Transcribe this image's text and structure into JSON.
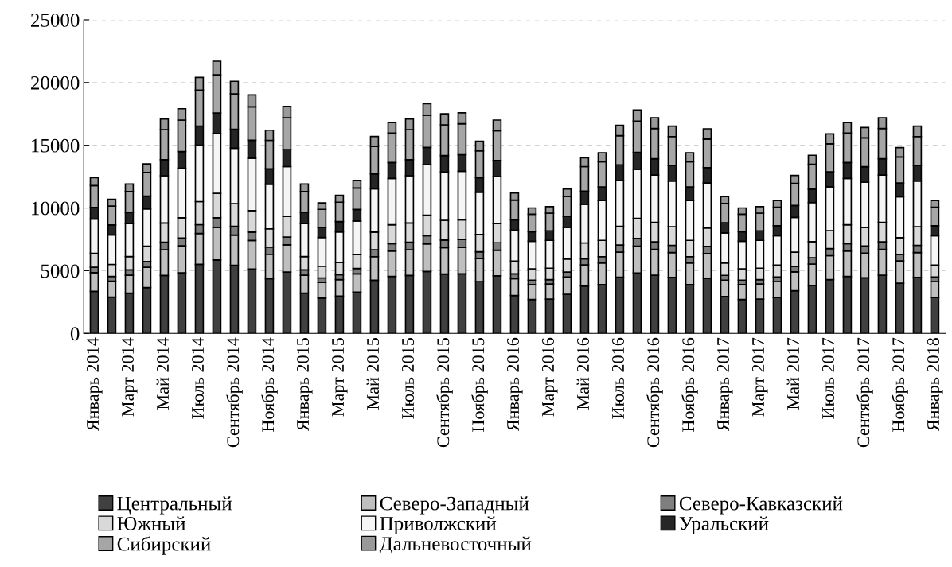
{
  "chart_data": {
    "type": "bar",
    "stacked": true,
    "categories": [
      "Январь 2014",
      null,
      "Март 2014",
      null,
      "Май 2014",
      null,
      "Июль 2014",
      null,
      "Сентябрь 2014",
      null,
      "Ноябрь 2014",
      null,
      "Январь 2015",
      null,
      "Март 2015",
      null,
      "Май 2015",
      null,
      "Июль 2015",
      null,
      "Сентябрь 2015",
      null,
      "Ноябрь 2015",
      null,
      "Январь 2016",
      null,
      "Март 2016",
      null,
      "Май 2016",
      null,
      "Июль 2016",
      null,
      "Сентябрь 2016",
      null,
      "Ноябрь 2016",
      null,
      "Январь 2017",
      null,
      "Март 2017",
      null,
      "Май 2017",
      null,
      "Июль 2017",
      null,
      "Сентябрь 2017",
      null,
      "Ноябрь 2017",
      null,
      "Январь 2018"
    ],
    "series": [
      {
        "name": "Центральный",
        "color": "#404040",
        "values": [
          3350,
          2890,
          3210,
          3650,
          4620,
          4830,
          5510,
          5860,
          5430,
          5130,
          4370,
          4890,
          3210,
          2810,
          2970,
          3290,
          4240,
          4540,
          4620,
          4940,
          4730,
          4750,
          4130,
          4590,
          3020,
          2700,
          2730,
          3110,
          3780,
          3890,
          4480,
          4810,
          4640,
          4460,
          3890,
          4400,
          2940,
          2700,
          2730,
          2860,
          3400,
          3830,
          4290,
          4540,
          4430,
          4640,
          4000,
          4460,
          2860
        ]
      },
      {
        "name": "Северо-Западный",
        "color": "#bfbfbf",
        "values": [
          1490,
          1280,
          1430,
          1620,
          2050,
          2150,
          2450,
          2600,
          2410,
          2280,
          1940,
          2170,
          1430,
          1250,
          1320,
          1460,
          1880,
          2020,
          2050,
          2200,
          2100,
          2110,
          1840,
          2040,
          1340,
          1200,
          1210,
          1380,
          1680,
          1730,
          1990,
          2140,
          2060,
          1980,
          1730,
          1960,
          1310,
          1200,
          1210,
          1270,
          1510,
          1700,
          1910,
          2020,
          1970,
          2060,
          1780,
          1980,
          1270
        ]
      },
      {
        "name": "Северо-Кавказский",
        "color": "#7f7f7f",
        "values": [
          430,
          370,
          420,
          470,
          600,
          630,
          710,
          760,
          700,
          670,
          570,
          630,
          420,
          360,
          390,
          430,
          550,
          590,
          600,
          640,
          610,
          620,
          540,
          600,
          390,
          350,
          350,
          400,
          490,
          500,
          580,
          620,
          600,
          580,
          500,
          570,
          380,
          350,
          350,
          370,
          440,
          500,
          560,
          590,
          570,
          600,
          520,
          580,
          370
        ]
      },
      {
        "name": "Южный",
        "color": "#d9d9d9",
        "values": [
          1120,
          960,
          1070,
          1220,
          1540,
          1610,
          1840,
          1950,
          1810,
          1710,
          1460,
          1630,
          1070,
          940,
          990,
          1100,
          1410,
          1510,
          1540,
          1650,
          1580,
          1580,
          1380,
          1530,
          1010,
          900,
          910,
          1040,
          1260,
          1300,
          1490,
          1600,
          1550,
          1490,
          1300,
          1470,
          980,
          900,
          910,
          950,
          1130,
          1280,
          1430,
          1510,
          1480,
          1550,
          1330,
          1490,
          950
        ]
      },
      {
        "name": "Приволжский",
        "color": "#f5f5f5",
        "values": [
          2730,
          2350,
          2620,
          2970,
          3760,
          3940,
          4490,
          4770,
          4420,
          4180,
          3560,
          3980,
          2620,
          2290,
          2420,
          2680,
          3450,
          3700,
          3760,
          4030,
          3850,
          3870,
          3370,
          3740,
          2460,
          2200,
          2220,
          2530,
          3080,
          3170,
          3650,
          3920,
          3780,
          3630,
          3170,
          3590,
          2400,
          2200,
          2220,
          2330,
          2770,
          3120,
          3500,
          3700,
          3610,
          3780,
          3260,
          3630,
          2330
        ]
      },
      {
        "name": "Уральский",
        "color": "#262626",
        "values": [
          930,
          800,
          890,
          1010,
          1280,
          1340,
          1530,
          1630,
          1510,
          1430,
          1220,
          1360,
          890,
          780,
          830,
          920,
          1180,
          1260,
          1280,
          1370,
          1310,
          1320,
          1150,
          1280,
          840,
          750,
          760,
          860,
          1050,
          1080,
          1250,
          1340,
          1290,
          1240,
          1080,
          1220,
          820,
          750,
          760,
          800,
          950,
          1070,
          1190,
          1260,
          1230,
          1290,
          1110,
          1240,
          800
        ]
      },
      {
        "name": "Сибирский",
        "color": "#a6a6a6",
        "values": [
          1740,
          1500,
          1670,
          1890,
          2390,
          2510,
          2860,
          3040,
          2810,
          2660,
          2270,
          2530,
          1670,
          1460,
          1540,
          1710,
          2200,
          2350,
          2390,
          2560,
          2450,
          2460,
          2140,
          2380,
          1570,
          1400,
          1410,
          1610,
          1960,
          2020,
          2320,
          2490,
          2410,
          2310,
          2020,
          2280,
          1530,
          1400,
          1410,
          1480,
          1760,
          1990,
          2230,
          2350,
          2300,
          2410,
          2070,
          2310,
          1480
        ]
      },
      {
        "name": "Дальневосточный",
        "color": "#999999",
        "values": [
          620,
          540,
          600,
          680,
          860,
          900,
          1020,
          1090,
          1010,
          950,
          810,
          910,
          600,
          520,
          550,
          610,
          790,
          840,
          860,
          920,
          880,
          880,
          770,
          850,
          560,
          500,
          510,
          580,
          700,
          720,
          830,
          890,
          860,
          830,
          720,
          820,
          550,
          500,
          510,
          530,
          630,
          710,
          800,
          840,
          820,
          860,
          740,
          830,
          530
        ]
      }
    ],
    "ylim": [
      0,
      25000
    ],
    "yticks": [
      0,
      5000,
      10000,
      15000,
      20000,
      25000
    ],
    "grid": "y",
    "legend": "bottom"
  }
}
